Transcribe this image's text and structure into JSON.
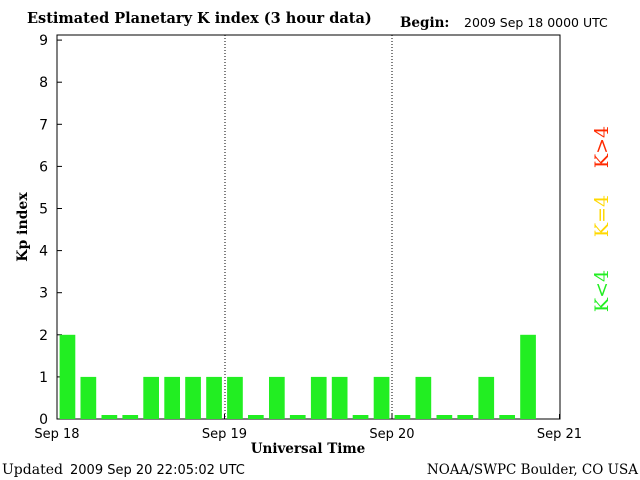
{
  "header": {
    "title": "Estimated Planetary K index (3 hour data)",
    "begin_label": "Begin:",
    "begin_value": "2009 Sep 18 0000 UTC"
  },
  "footer": {
    "updated_label": "Updated",
    "updated_value": "2009 Sep 20 22:05:02 UTC",
    "credit": "NOAA/SWPC Boulder, CO USA"
  },
  "legend": [
    {
      "label": "K>4",
      "color": "#ff2a00"
    },
    {
      "label": "K=4",
      "color": "#ffd800"
    },
    {
      "label": "K<4",
      "color": "#22ee22"
    }
  ],
  "chart_data": {
    "type": "bar",
    "title": "Estimated Planetary K index (3 hour data)",
    "xlabel": "Universal Time",
    "ylabel": "Kp index",
    "ylim": [
      0,
      9
    ],
    "yticks": [
      "0",
      "1",
      "2",
      "3",
      "4",
      "5",
      "6",
      "7",
      "8",
      "9"
    ],
    "x_tick_labels": [
      "Sep 18",
      "Sep 19",
      "Sep 20",
      "Sep 21"
    ],
    "x_range": [
      "2009-09-18 00:00",
      "2009-09-21 00:00"
    ],
    "interval_hours": 3,
    "day_separators": "dotted vertical lines at Sep 19 and Sep 20",
    "bar_color": "#22ee22",
    "periods": [
      "Sep 18 00-03",
      "Sep 18 03-06",
      "Sep 18 06-09",
      "Sep 18 09-12",
      "Sep 18 12-15",
      "Sep 18 15-18",
      "Sep 18 18-21",
      "Sep 18 21-24",
      "Sep 19 00-03",
      "Sep 19 03-06",
      "Sep 19 06-09",
      "Sep 19 09-12",
      "Sep 19 12-15",
      "Sep 19 15-18",
      "Sep 19 18-21",
      "Sep 19 21-24",
      "Sep 20 00-03",
      "Sep 20 03-06",
      "Sep 20 06-09",
      "Sep 20 09-12",
      "Sep 20 12-15",
      "Sep 20 15-18",
      "Sep 20 18-21"
    ],
    "values": [
      2,
      1,
      0,
      0,
      1,
      1,
      1,
      1,
      1,
      0,
      1,
      0,
      1,
      1,
      0,
      1,
      0,
      1,
      0,
      0,
      1,
      0,
      2
    ]
  }
}
